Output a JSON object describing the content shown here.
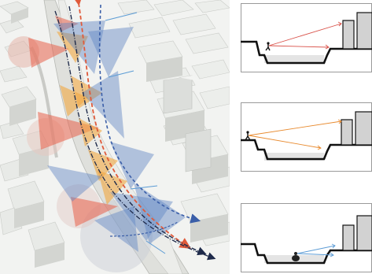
{
  "colors": {
    "sky_bg": "#ffffff",
    "building_light": "#e9ebe8",
    "building_roof": "#f4f5f3",
    "building_side": "#cfd1cd",
    "road": "#d9dad6",
    "cone_red": "#e8604a",
    "cone_orange": "#f2a640",
    "cone_blue": "#5f86c4",
    "path_dark": "#1e2a4a",
    "arrow_red": "#d9524a",
    "arrow_orange": "#e88a2e",
    "arrow_blue": "#5b9bd5",
    "section_line": "#111111",
    "water_fill": "#e4e4e4",
    "tower_fill": "#d2d2d2"
  },
  "sections": [
    {
      "id": "upper-level-view",
      "viewer": "person",
      "sightline_color": "red"
    },
    {
      "id": "mid-level-view",
      "viewer": "person",
      "sightline_color": "orange"
    },
    {
      "id": "channel-level-view",
      "viewer": "person",
      "sightline_color": "blue"
    }
  ],
  "map": {
    "cone_sets": [
      "red",
      "orange",
      "blue"
    ],
    "routes": [
      "dark-dash-dot",
      "red-dash",
      "blue-dash"
    ]
  }
}
